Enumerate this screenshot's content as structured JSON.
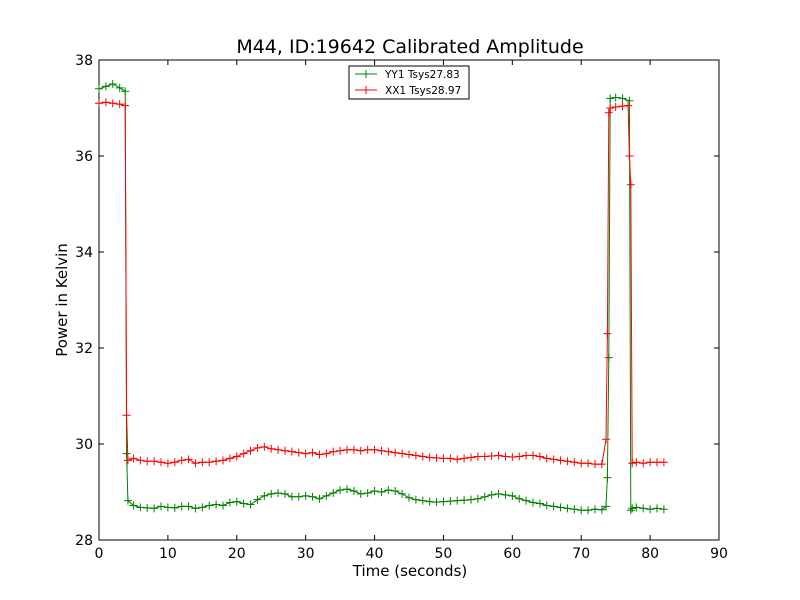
{
  "chart_data": {
    "type": "line",
    "title": "M44, ID:19642 Calibrated Amplitude",
    "xlabel": "Time (seconds)",
    "ylabel": "Power in Kelvin",
    "xlim": [
      0,
      90
    ],
    "ylim": [
      28,
      38
    ],
    "xticks": [
      0,
      10,
      20,
      30,
      40,
      50,
      60,
      70,
      80,
      90
    ],
    "yticks": [
      28,
      30,
      32,
      34,
      36,
      38
    ],
    "grid": false,
    "legend_position": "top-center",
    "marker": "+",
    "series": [
      {
        "name": "YY1 Tsys27.83",
        "color": "#008000",
        "x": [
          0,
          1,
          2,
          3,
          3.8,
          4.0,
          4.2,
          5,
          6,
          7,
          8,
          9,
          10,
          11,
          12,
          13,
          14,
          15,
          16,
          17,
          18,
          19,
          20,
          21,
          22,
          23,
          24,
          25,
          26,
          27,
          28,
          29,
          30,
          31,
          32,
          33,
          34,
          35,
          36,
          37,
          38,
          39,
          40,
          41,
          42,
          43,
          44,
          45,
          46,
          47,
          48,
          49,
          50,
          51,
          52,
          53,
          54,
          55,
          56,
          57,
          58,
          59,
          60,
          61,
          62,
          63,
          64,
          65,
          66,
          67,
          68,
          69,
          70,
          71,
          72,
          73,
          73.6,
          73.8,
          74.0,
          74.2,
          75,
          76,
          77.0,
          77.2,
          77.4,
          78,
          79,
          80,
          81,
          82
        ],
        "y": [
          37.4,
          37.45,
          37.5,
          37.42,
          37.35,
          29.8,
          28.82,
          28.72,
          28.68,
          28.67,
          28.66,
          28.7,
          28.68,
          28.67,
          28.7,
          28.7,
          28.66,
          28.68,
          28.72,
          28.74,
          28.72,
          28.78,
          28.8,
          28.76,
          28.74,
          28.84,
          28.92,
          28.96,
          28.98,
          28.96,
          28.9,
          28.9,
          28.92,
          28.9,
          28.86,
          28.92,
          28.98,
          29.04,
          29.06,
          29.02,
          28.96,
          28.98,
          29.02,
          29.0,
          29.04,
          29.02,
          28.96,
          28.88,
          28.84,
          28.82,
          28.8,
          28.79,
          28.8,
          28.81,
          28.82,
          28.83,
          28.84,
          28.86,
          28.9,
          28.94,
          28.96,
          28.94,
          28.92,
          28.86,
          28.82,
          28.78,
          28.76,
          28.72,
          28.7,
          28.68,
          28.66,
          28.64,
          28.62,
          28.62,
          28.64,
          28.63,
          28.7,
          29.3,
          31.8,
          37.2,
          37.22,
          37.2,
          37.15,
          28.62,
          28.66,
          28.68,
          28.66,
          28.64,
          28.66,
          28.64
        ]
      },
      {
        "name": "XX1 Tsys28.97",
        "color": "#ff0000",
        "x": [
          0,
          1,
          2,
          3,
          3.8,
          4.0,
          4.2,
          5,
          6,
          7,
          8,
          9,
          10,
          11,
          12,
          13,
          14,
          15,
          16,
          17,
          18,
          19,
          20,
          21,
          22,
          23,
          24,
          25,
          26,
          27,
          28,
          29,
          30,
          31,
          32,
          33,
          34,
          35,
          36,
          37,
          38,
          39,
          40,
          41,
          42,
          43,
          44,
          45,
          46,
          47,
          48,
          49,
          50,
          51,
          52,
          53,
          54,
          55,
          56,
          57,
          58,
          59,
          60,
          61,
          62,
          63,
          64,
          65,
          66,
          67,
          68,
          69,
          70,
          71,
          72,
          73,
          73.6,
          73.8,
          74.0,
          74.2,
          75,
          76,
          76.8,
          77.0,
          77.2,
          77.4,
          78,
          79,
          80,
          81,
          82
        ],
        "y": [
          37.1,
          37.12,
          37.1,
          37.08,
          37.05,
          30.6,
          29.66,
          29.7,
          29.66,
          29.64,
          29.64,
          29.62,
          29.6,
          29.62,
          29.66,
          29.68,
          29.6,
          29.62,
          29.62,
          29.64,
          29.66,
          29.7,
          29.74,
          29.8,
          29.86,
          29.92,
          29.94,
          29.9,
          29.88,
          29.86,
          29.84,
          29.82,
          29.8,
          29.82,
          29.78,
          29.8,
          29.84,
          29.86,
          29.88,
          29.88,
          29.86,
          29.88,
          29.88,
          29.86,
          29.84,
          29.82,
          29.8,
          29.78,
          29.76,
          29.74,
          29.72,
          29.71,
          29.7,
          29.7,
          29.68,
          29.7,
          29.72,
          29.74,
          29.74,
          29.75,
          29.76,
          29.74,
          29.73,
          29.74,
          29.76,
          29.76,
          29.74,
          29.7,
          29.68,
          29.66,
          29.64,
          29.62,
          29.6,
          29.6,
          29.58,
          29.58,
          30.1,
          32.3,
          36.9,
          37.0,
          37.02,
          37.04,
          37.05,
          36.0,
          35.4,
          29.6,
          29.62,
          29.6,
          29.62,
          29.62,
          29.62
        ]
      }
    ]
  }
}
